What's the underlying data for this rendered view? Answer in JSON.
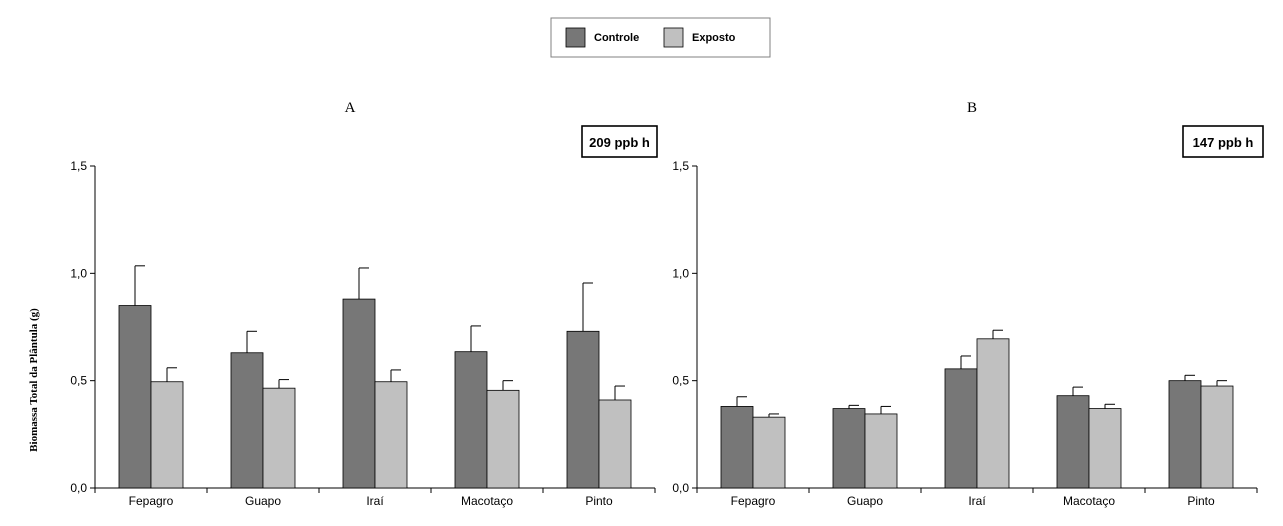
{
  "legend": {
    "items": [
      {
        "label": "Controle",
        "color": "#777777"
      },
      {
        "label": "Exposto",
        "color": "#c0c0c0"
      }
    ]
  },
  "y_axis_label": "Biomassa Total da Plântula (g)",
  "chart_data": [
    {
      "type": "bar",
      "panel_label": "A",
      "annotation": "209 ppb h",
      "categories": [
        "Fepagro",
        "Guapo",
        "Iraí",
        "Macotaço",
        "Pinto"
      ],
      "ylim": [
        0,
        1.5
      ],
      "yticks": [
        "0,0",
        "0,5",
        "1,0",
        "1,5"
      ],
      "ytick_values": [
        0,
        0.5,
        1.0,
        1.5
      ],
      "series": [
        {
          "name": "Controle",
          "color": "#777777",
          "values": [
            0.85,
            0.63,
            0.88,
            0.635,
            0.73
          ],
          "errors": [
            0.185,
            0.1,
            0.145,
            0.12,
            0.225
          ]
        },
        {
          "name": "Exposto",
          "color": "#c0c0c0",
          "values": [
            0.495,
            0.465,
            0.495,
            0.455,
            0.41
          ],
          "errors": [
            0.065,
            0.04,
            0.055,
            0.045,
            0.065
          ]
        }
      ]
    },
    {
      "type": "bar",
      "panel_label": "B",
      "annotation": "147 ppb h",
      "categories": [
        "Fepagro",
        "Guapo",
        "Iraí",
        "Macotaço",
        "Pinto"
      ],
      "ylim": [
        0,
        1.5
      ],
      "yticks": [
        "0,0",
        "0,5",
        "1,0",
        "1,5"
      ],
      "ytick_values": [
        0,
        0.5,
        1.0,
        1.5
      ],
      "series": [
        {
          "name": "Controle",
          "color": "#777777",
          "values": [
            0.38,
            0.37,
            0.555,
            0.43,
            0.5
          ],
          "errors": [
            0.045,
            0.015,
            0.06,
            0.04,
            0.025
          ]
        },
        {
          "name": "Exposto",
          "color": "#c0c0c0",
          "values": [
            0.33,
            0.345,
            0.695,
            0.37,
            0.475
          ],
          "errors": [
            0.015,
            0.035,
            0.04,
            0.02,
            0.025
          ]
        }
      ]
    }
  ]
}
